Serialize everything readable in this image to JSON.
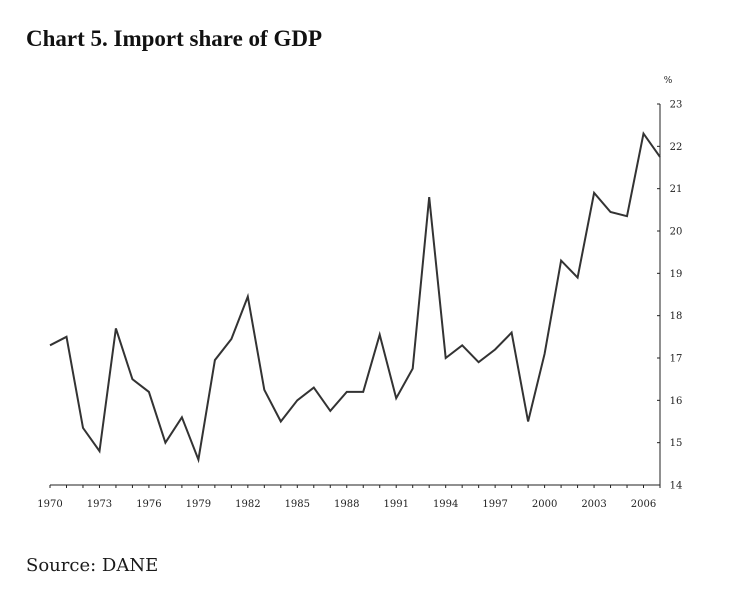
{
  "chart_data": {
    "type": "line",
    "title": "Chart 5. Import share of GDP",
    "xlabel": "",
    "ylabel": "%",
    "y_axis_position": "right",
    "ylim": [
      14,
      23
    ],
    "y_ticks": [
      14,
      15,
      16,
      17,
      18,
      19,
      20,
      21,
      22,
      23
    ],
    "xlim": [
      1970,
      2007
    ],
    "x_tick_labels": [
      "1970",
      "1973",
      "1976",
      "1979",
      "1982",
      "1985",
      "1988",
      "1991",
      "1994",
      "1997",
      "2000",
      "2003",
      "2006"
    ],
    "series": [
      {
        "name": "Import share of GDP",
        "color": "#333333",
        "x": [
          1970,
          1971,
          1972,
          1973,
          1974,
          1975,
          1976,
          1977,
          1978,
          1979,
          1980,
          1981,
          1982,
          1983,
          1984,
          1985,
          1986,
          1987,
          1988,
          1989,
          1990,
          1991,
          1992,
          1993,
          1994,
          1995,
          1996,
          1997,
          1998,
          1999,
          2000,
          2001,
          2002,
          2003,
          2004,
          2005,
          2006,
          2007
        ],
        "values": [
          17.3,
          17.5,
          15.35,
          14.8,
          17.7,
          16.5,
          16.2,
          15.0,
          15.6,
          14.6,
          16.95,
          17.45,
          18.45,
          16.25,
          15.5,
          16.0,
          16.3,
          15.75,
          16.2,
          16.2,
          17.55,
          16.05,
          16.75,
          20.8,
          17.0,
          17.3,
          16.9,
          17.2,
          17.6,
          15.5,
          17.1,
          19.3,
          18.9,
          20.9,
          20.45,
          20.35,
          22.3,
          21.75
        ]
      }
    ],
    "source": "Source:  DANE"
  }
}
